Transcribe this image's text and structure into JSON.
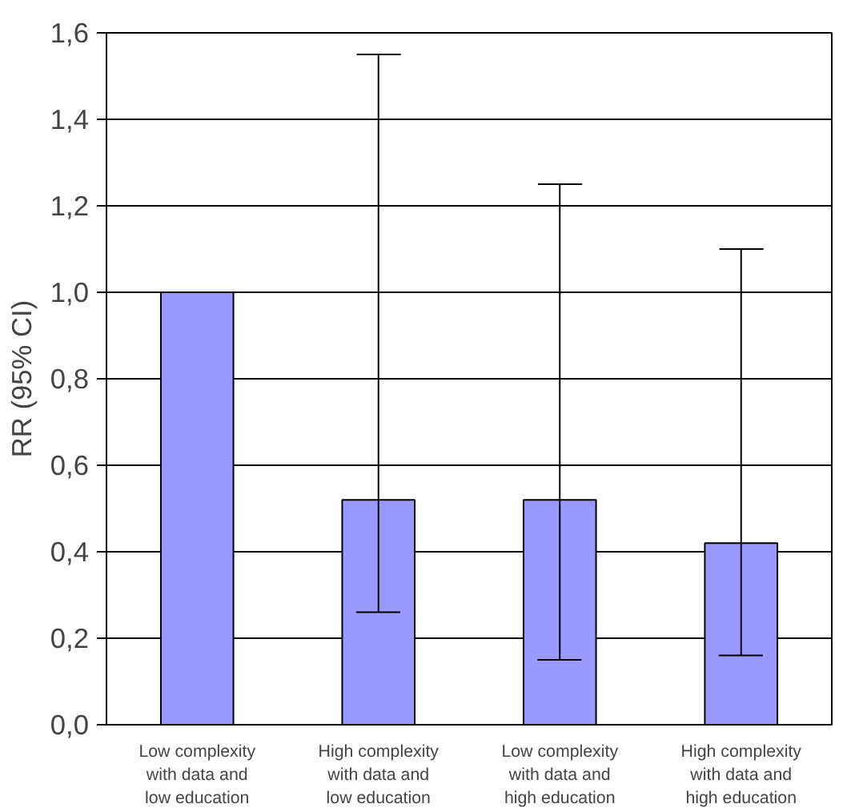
{
  "chart_data": {
    "type": "bar",
    "ylabel": "RR (95% CI)",
    "categories": [
      "Low complexity with data and low education",
      "High complexity with data and low education",
      "Low complexity with data and high education",
      "High complexity with data and high education"
    ],
    "values": [
      1.0,
      0.52,
      0.52,
      0.42
    ],
    "errors": [
      null,
      [
        0.26,
        1.55
      ],
      [
        0.15,
        1.25
      ],
      [
        0.16,
        1.1
      ]
    ],
    "color": "#9999ff",
    "ylim": [
      0,
      1.6
    ],
    "yticks": [
      {
        "value": 0,
        "label": "0,0"
      },
      {
        "value": 0.2,
        "label": "0,2"
      },
      {
        "value": 0.4,
        "label": "0,4"
      },
      {
        "value": 0.6,
        "label": "0,6"
      },
      {
        "value": 0.8,
        "label": "0,8"
      },
      {
        "value": 1.0,
        "label": "1,0"
      },
      {
        "value": 1.2,
        "label": "1,2"
      },
      {
        "value": 1.4,
        "label": "1,4"
      },
      {
        "value": 1.6,
        "label": "1,6"
      }
    ],
    "grid": "y"
  }
}
